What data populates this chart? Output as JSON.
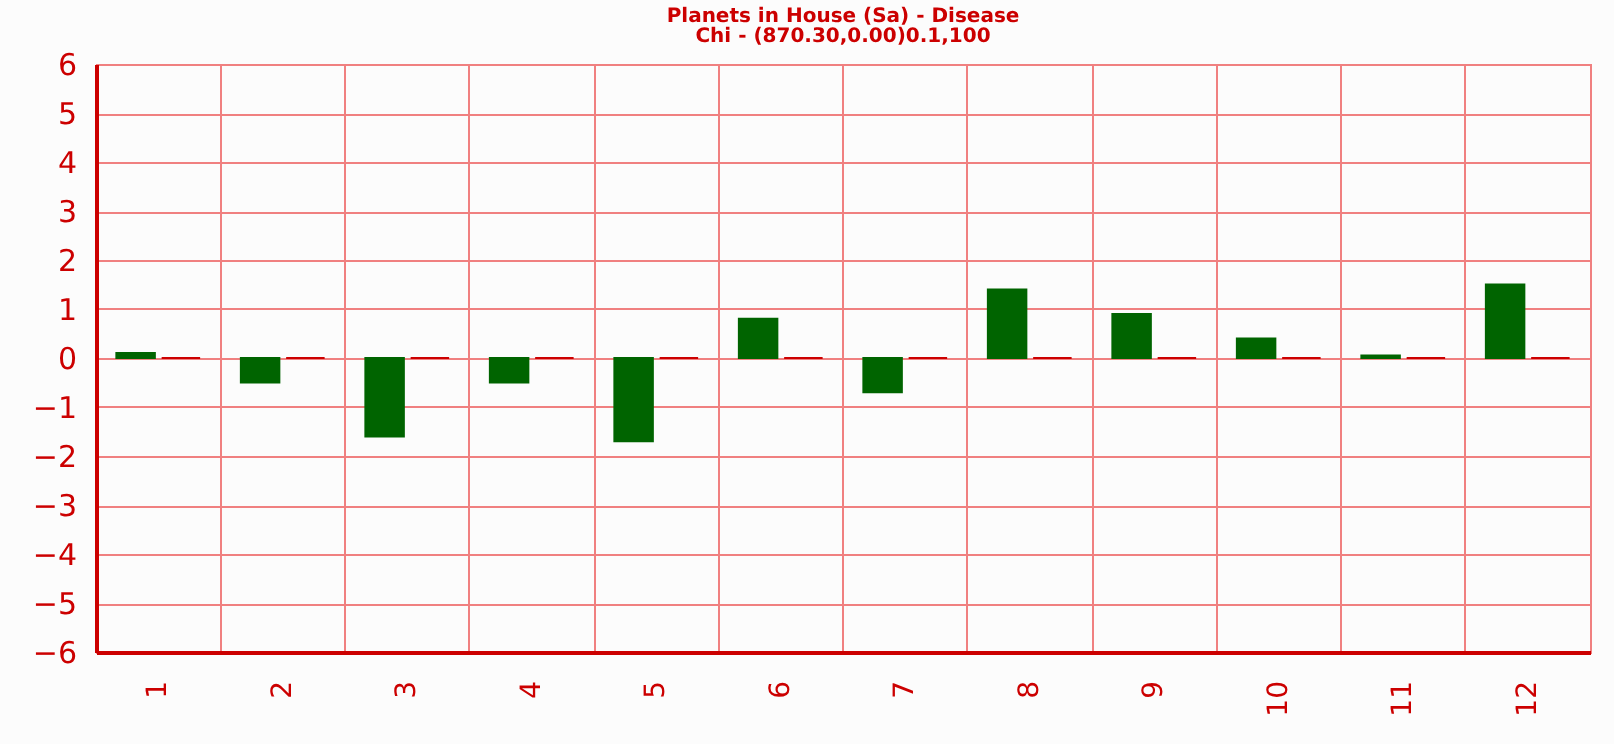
{
  "chart_data": {
    "type": "bar",
    "title": "Planets in House (Sa) - Disease",
    "subtitle": "Chi - (870.30,0.00)0.1,100",
    "categories": [
      "1",
      "2",
      "3",
      "4",
      "5",
      "6",
      "7",
      "8",
      "9",
      "10",
      "11",
      "12"
    ],
    "series": [
      {
        "color": "#006400",
        "values": [
          0.1,
          -0.5,
          -1.6,
          -0.5,
          -1.7,
          0.8,
          -0.7,
          1.4,
          0.9,
          0.4,
          0.05,
          1.5
        ]
      },
      {
        "color": "#cc0000",
        "values": [
          0,
          0,
          0,
          0,
          0,
          0,
          0,
          0,
          0,
          0,
          0,
          0
        ]
      }
    ],
    "ylim": [
      -6,
      6
    ],
    "yticks": [
      -6,
      -5,
      -4,
      -3,
      -2,
      -1,
      0,
      1,
      2,
      3,
      4,
      5,
      6
    ],
    "grid": true,
    "legend": false
  }
}
